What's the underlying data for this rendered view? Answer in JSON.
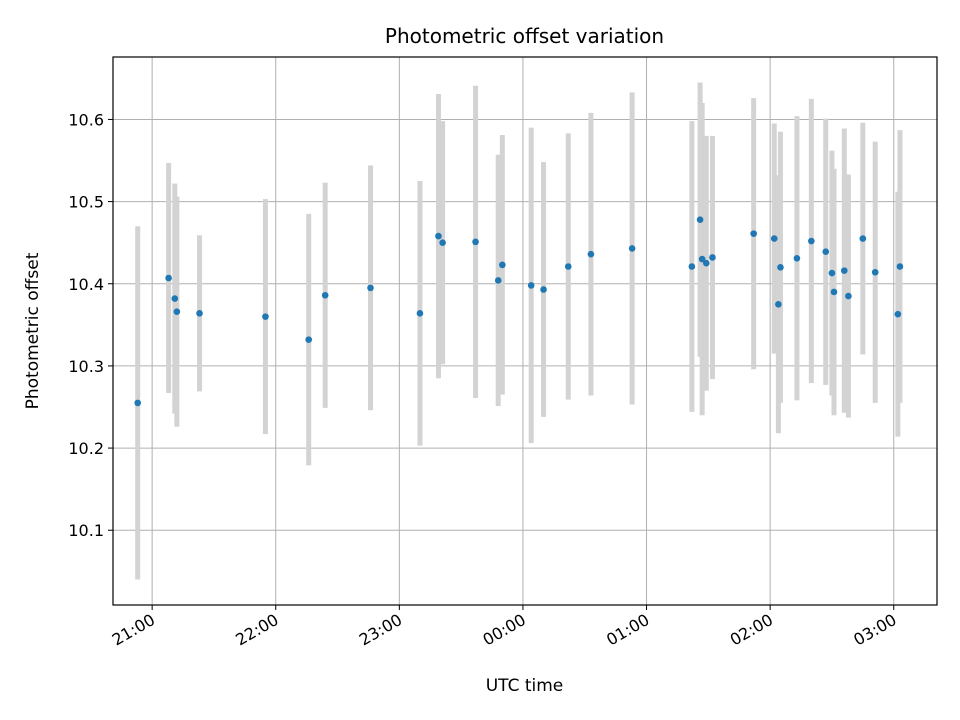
{
  "chart_data": {
    "type": "scatter",
    "title": "Photometric offset variation",
    "xlabel": "UTC time",
    "ylabel": "Photometric offset",
    "x_ticks": [
      "21:00",
      "22:00",
      "23:00",
      "00:00",
      "01:00",
      "02:00",
      "03:00"
    ],
    "y_ticks": [
      "10.1",
      "10.2",
      "10.3",
      "10.4",
      "10.5",
      "10.6"
    ],
    "grid": true,
    "colors": {
      "point": "#1f77b4",
      "errorbar": "#d3d3d3",
      "grid": "#b0b0b0"
    },
    "series": [
      {
        "time": [
          "20:53",
          "21:08",
          "21:11",
          "21:12",
          "21:23",
          "21:55",
          "22:16",
          "22:24",
          "22:46",
          "23:10",
          "23:19",
          "23:21",
          "23:37",
          "23:48",
          "23:50",
          "24:04",
          "24:10",
          "24:22",
          "24:33",
          "24:53",
          "25:22",
          "25:26",
          "25:27",
          "25:29",
          "25:32",
          "25:52",
          "26:02",
          "26:04",
          "26:05",
          "26:13",
          "26:20",
          "26:27",
          "26:30",
          "26:31",
          "26:36",
          "26:38",
          "26:45",
          "26:51",
          "27:02",
          "27:03"
        ],
        "y": [
          10.255,
          10.407,
          10.382,
          10.366,
          10.364,
          10.36,
          10.332,
          10.386,
          10.395,
          10.364,
          10.458,
          10.45,
          10.451,
          10.404,
          10.423,
          10.398,
          10.393,
          10.421,
          10.436,
          10.443,
          10.421,
          10.478,
          10.43,
          10.425,
          10.432,
          10.461,
          10.455,
          10.375,
          10.42,
          10.431,
          10.452,
          10.439,
          10.413,
          10.39,
          10.416,
          10.385,
          10.455,
          10.414,
          10.363,
          10.421
        ],
        "yerr": [
          0.215,
          0.14,
          0.14,
          0.14,
          0.095,
          0.143,
          0.153,
          0.137,
          0.149,
          0.161,
          0.173,
          0.148,
          0.19,
          0.153,
          0.158,
          0.192,
          0.155,
          0.162,
          0.172,
          0.19,
          0.177,
          0.167,
          0.19,
          0.155,
          0.148,
          0.165,
          0.14,
          0.157,
          0.165,
          0.173,
          0.173,
          0.162,
          0.149,
          0.15,
          0.173,
          0.148,
          0.141,
          0.159,
          0.149,
          0.166
        ]
      }
    ],
    "xlim": [
      "20:41",
      "27:21"
    ],
    "ylim": [
      10.009,
      10.676
    ]
  }
}
